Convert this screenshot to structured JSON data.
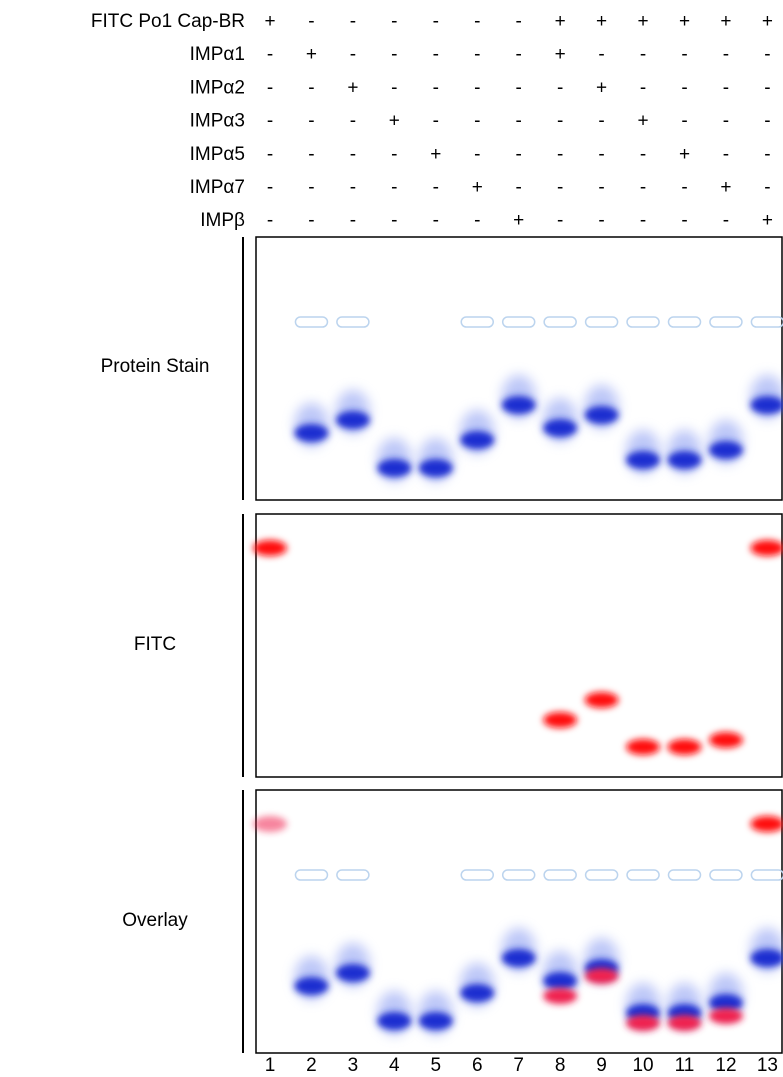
{
  "rows": [
    {
      "label": "FITC Po1 Cap-BR",
      "marks": [
        "+",
        "-",
        "-",
        "-",
        "-",
        "-",
        "-",
        "+",
        "+",
        "+",
        "+",
        "+",
        "+"
      ]
    },
    {
      "label": "IMPα1",
      "marks": [
        "-",
        "+",
        "-",
        "-",
        "-",
        "-",
        "-",
        "+",
        "-",
        "-",
        "-",
        "-",
        "-"
      ]
    },
    {
      "label": "IMPα2",
      "marks": [
        "-",
        "-",
        "+",
        "-",
        "-",
        "-",
        "-",
        "-",
        "+",
        "-",
        "-",
        "-",
        "-"
      ]
    },
    {
      "label": "IMPα3",
      "marks": [
        "-",
        "-",
        "-",
        "+",
        "-",
        "-",
        "-",
        "-",
        "-",
        "+",
        "-",
        "-",
        "-"
      ]
    },
    {
      "label": "IMPα5",
      "marks": [
        "-",
        "-",
        "-",
        "-",
        "+",
        "-",
        "-",
        "-",
        "-",
        "-",
        "+",
        "-",
        "-"
      ]
    },
    {
      "label": "IMPα7",
      "marks": [
        "-",
        "-",
        "-",
        "-",
        "-",
        "+",
        "-",
        "-",
        "-",
        "-",
        "-",
        "+",
        "-"
      ]
    },
    {
      "label": "IMPβ",
      "marks": [
        "-",
        "-",
        "-",
        "-",
        "-",
        "-",
        "+",
        "-",
        "-",
        "-",
        "-",
        "-",
        "+"
      ]
    }
  ],
  "panels": [
    "Protein Stain",
    "FITC",
    "Overlay"
  ],
  "lanes": [
    "1",
    "2",
    "3",
    "4",
    "5",
    "6",
    "7",
    "8",
    "9",
    "10",
    "11",
    "12",
    "13"
  ]
}
